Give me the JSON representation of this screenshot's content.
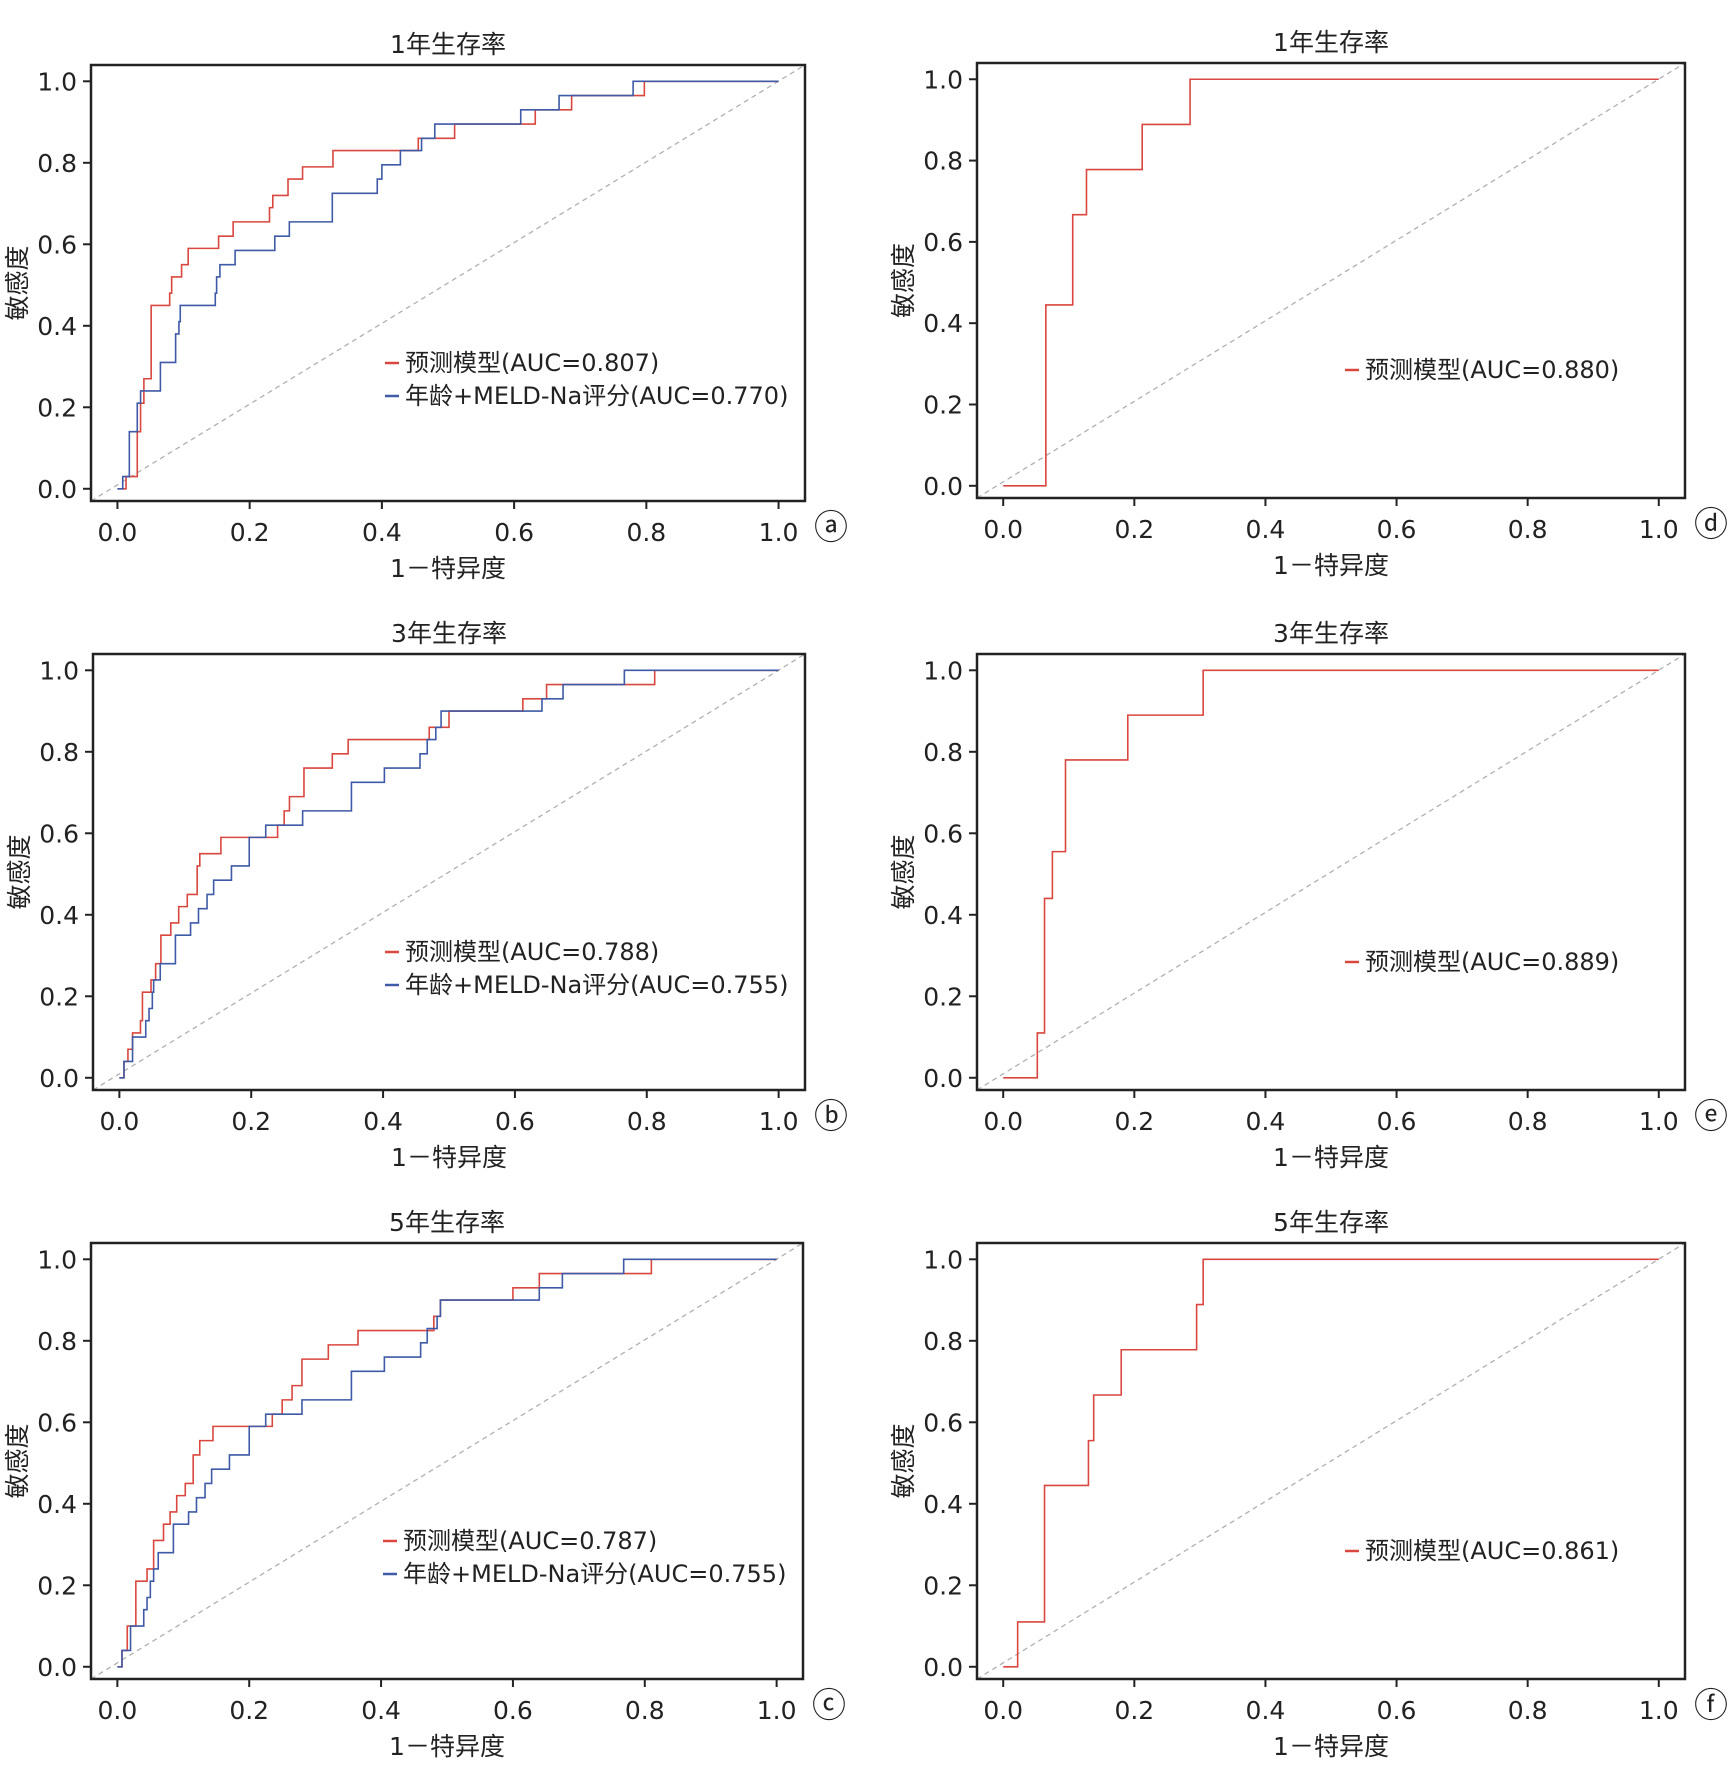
{
  "colors": {
    "model": "#d9473f",
    "meld": "#3f5aa6",
    "diagonal": "#b0b0b0",
    "axis": "#222222"
  },
  "chart_data": [
    {
      "panel": "a",
      "panel_mark": "ⓐ",
      "type": "line",
      "title": "1年生存率",
      "xlabel": "1－特异度",
      "ylabel": "敏感度",
      "xlim": [
        -0.04,
        1.04
      ],
      "ylim": [
        -0.03,
        1.04
      ],
      "xticks": [
        "0.0",
        "0.2",
        "0.4",
        "0.6",
        "0.8",
        "1.0"
      ],
      "yticks": [
        "0.0",
        "0.2",
        "0.4",
        "0.6",
        "0.8",
        "1.0"
      ],
      "grid": false,
      "legend_position": "bottom-right",
      "diagonal_reference": true,
      "series": [
        {
          "name": "预测模型(AUC=0.807)",
          "color_key": "model",
          "step_points": [
            [
              0,
              0
            ],
            [
              0.013,
              0
            ],
            [
              0.013,
              0.03
            ],
            [
              0.03,
              0.03
            ],
            [
              0.03,
              0.14
            ],
            [
              0.035,
              0.21
            ],
            [
              0.04,
              0.27
            ],
            [
              0.051,
              0.28
            ],
            [
              0.051,
              0.45
            ],
            [
              0.079,
              0.48
            ],
            [
              0.082,
              0.52
            ],
            [
              0.097,
              0.55
            ],
            [
              0.107,
              0.59
            ],
            [
              0.153,
              0.62
            ],
            [
              0.175,
              0.655
            ],
            [
              0.23,
              0.69
            ],
            [
              0.235,
              0.72
            ],
            [
              0.258,
              0.76
            ],
            [
              0.28,
              0.79
            ],
            [
              0.326,
              0.83
            ],
            [
              0.455,
              0.86
            ],
            [
              0.51,
              0.895
            ],
            [
              0.632,
              0.93
            ],
            [
              0.687,
              0.965
            ],
            [
              0.797,
              1.0
            ],
            [
              1.0,
              1.0
            ]
          ]
        },
        {
          "name": "年龄+MELD-Na评分(AUC=0.770)",
          "color_key": "meld",
          "step_points": [
            [
              0,
              0
            ],
            [
              0.008,
              0
            ],
            [
              0.008,
              0.03
            ],
            [
              0.018,
              0.14
            ],
            [
              0.03,
              0.21
            ],
            [
              0.035,
              0.24
            ],
            [
              0.065,
              0.31
            ],
            [
              0.088,
              0.38
            ],
            [
              0.093,
              0.41
            ],
            [
              0.095,
              0.45
            ],
            [
              0.148,
              0.48
            ],
            [
              0.15,
              0.52
            ],
            [
              0.155,
              0.55
            ],
            [
              0.178,
              0.585
            ],
            [
              0.238,
              0.62
            ],
            [
              0.26,
              0.655
            ],
            [
              0.325,
              0.725
            ],
            [
              0.393,
              0.76
            ],
            [
              0.4,
              0.795
            ],
            [
              0.428,
              0.83
            ],
            [
              0.46,
              0.86
            ],
            [
              0.48,
              0.895
            ],
            [
              0.61,
              0.93
            ],
            [
              0.668,
              0.965
            ],
            [
              0.78,
              1.0
            ],
            [
              1.0,
              1.0
            ]
          ]
        }
      ]
    },
    {
      "panel": "d",
      "panel_mark": "ⓓ",
      "type": "line",
      "title": "1年生存率",
      "xlabel": "1－特异度",
      "ylabel": "敏感度",
      "xlim": [
        -0.04,
        1.04
      ],
      "ylim": [
        -0.03,
        1.04
      ],
      "xticks": [
        "0.0",
        "0.2",
        "0.4",
        "0.6",
        "0.8",
        "1.0"
      ],
      "yticks": [
        "0.0",
        "0.2",
        "0.4",
        "0.6",
        "0.8",
        "1.0"
      ],
      "grid": false,
      "legend_position": "right",
      "diagonal_reference": true,
      "series": [
        {
          "name": "预测模型(AUC=0.880)",
          "color_key": "model",
          "step_points": [
            [
              0,
              0
            ],
            [
              0.065,
              0
            ],
            [
              0.065,
              0.445
            ],
            [
              0.106,
              0.667
            ],
            [
              0.127,
              0.778
            ],
            [
              0.212,
              0.889
            ],
            [
              0.285,
              1.0
            ],
            [
              1.0,
              1.0
            ]
          ]
        }
      ]
    },
    {
      "panel": "b",
      "panel_mark": "ⓑ",
      "type": "line",
      "title": "3年生存率",
      "xlabel": "1－特异度",
      "ylabel": "敏感度",
      "xlim": [
        -0.04,
        1.04
      ],
      "ylim": [
        -0.03,
        1.04
      ],
      "xticks": [
        "0.0",
        "0.2",
        "0.4",
        "0.6",
        "0.8",
        "1.0"
      ],
      "yticks": [
        "0.0",
        "0.2",
        "0.4",
        "0.6",
        "0.8",
        "1.0"
      ],
      "grid": false,
      "legend_position": "bottom-right",
      "diagonal_reference": true,
      "series": [
        {
          "name": "预测模型(AUC=0.788)",
          "color_key": "model",
          "step_points": [
            [
              0,
              0
            ],
            [
              0.007,
              0
            ],
            [
              0.007,
              0.04
            ],
            [
              0.013,
              0.07
            ],
            [
              0.02,
              0.11
            ],
            [
              0.032,
              0.14
            ],
            [
              0.035,
              0.21
            ],
            [
              0.048,
              0.24
            ],
            [
              0.055,
              0.28
            ],
            [
              0.063,
              0.35
            ],
            [
              0.078,
              0.38
            ],
            [
              0.09,
              0.42
            ],
            [
              0.103,
              0.45
            ],
            [
              0.118,
              0.52
            ],
            [
              0.122,
              0.55
            ],
            [
              0.154,
              0.59
            ],
            [
              0.24,
              0.62
            ],
            [
              0.25,
              0.655
            ],
            [
              0.258,
              0.69
            ],
            [
              0.28,
              0.76
            ],
            [
              0.323,
              0.795
            ],
            [
              0.347,
              0.83
            ],
            [
              0.47,
              0.86
            ],
            [
              0.5,
              0.9
            ],
            [
              0.612,
              0.93
            ],
            [
              0.648,
              0.965
            ],
            [
              0.812,
              1.0
            ],
            [
              1.0,
              1.0
            ]
          ]
        },
        {
          "name": "年龄+MELD-Na评分(AUC=0.755)",
          "color_key": "meld",
          "step_points": [
            [
              0,
              0
            ],
            [
              0.007,
              0
            ],
            [
              0.007,
              0.04
            ],
            [
              0.02,
              0.1
            ],
            [
              0.04,
              0.14
            ],
            [
              0.045,
              0.17
            ],
            [
              0.05,
              0.21
            ],
            [
              0.052,
              0.24
            ],
            [
              0.062,
              0.28
            ],
            [
              0.085,
              0.35
            ],
            [
              0.108,
              0.38
            ],
            [
              0.12,
              0.415
            ],
            [
              0.133,
              0.45
            ],
            [
              0.143,
              0.485
            ],
            [
              0.17,
              0.52
            ],
            [
              0.197,
              0.59
            ],
            [
              0.222,
              0.62
            ],
            [
              0.278,
              0.655
            ],
            [
              0.352,
              0.725
            ],
            [
              0.402,
              0.76
            ],
            [
              0.456,
              0.795
            ],
            [
              0.467,
              0.83
            ],
            [
              0.48,
              0.86
            ],
            [
              0.488,
              0.9
            ],
            [
              0.641,
              0.93
            ],
            [
              0.673,
              0.965
            ],
            [
              0.766,
              1.0
            ],
            [
              1.0,
              1.0
            ]
          ]
        }
      ]
    },
    {
      "panel": "e",
      "panel_mark": "ⓔ",
      "type": "line",
      "title": "3年生存率",
      "xlabel": "1－特异度",
      "ylabel": "敏感度",
      "xlim": [
        -0.04,
        1.04
      ],
      "ylim": [
        -0.03,
        1.04
      ],
      "xticks": [
        "0.0",
        "0.2",
        "0.4",
        "0.6",
        "0.8",
        "1.0"
      ],
      "yticks": [
        "0.0",
        "0.2",
        "0.4",
        "0.6",
        "0.8",
        "1.0"
      ],
      "grid": false,
      "legend_position": "bottom-right",
      "diagonal_reference": true,
      "series": [
        {
          "name": "预测模型(AUC=0.889)",
          "color_key": "model",
          "step_points": [
            [
              0,
              0
            ],
            [
              0.052,
              0
            ],
            [
              0.052,
              0.11
            ],
            [
              0.063,
              0.44
            ],
            [
              0.075,
              0.555
            ],
            [
              0.095,
              0.78
            ],
            [
              0.19,
              0.89
            ],
            [
              0.305,
              1.0
            ],
            [
              1.0,
              1.0
            ]
          ]
        }
      ]
    },
    {
      "panel": "c",
      "panel_mark": "ⓒ",
      "type": "line",
      "title": "5年生存率",
      "xlabel": "1－特异度",
      "ylabel": "敏感度",
      "xlim": [
        -0.04,
        1.04
      ],
      "ylim": [
        -0.03,
        1.04
      ],
      "xticks": [
        "0.0",
        "0.2",
        "0.4",
        "0.6",
        "0.8",
        "1.0"
      ],
      "yticks": [
        "0.0",
        "0.2",
        "0.4",
        "0.6",
        "0.8",
        "1.0"
      ],
      "grid": false,
      "legend_position": "bottom-right",
      "diagonal_reference": true,
      "series": [
        {
          "name": "预测模型(AUC=0.787)",
          "color_key": "model",
          "step_points": [
            [
              0,
              0
            ],
            [
              0.007,
              0
            ],
            [
              0.007,
              0.04
            ],
            [
              0.015,
              0.1
            ],
            [
              0.028,
              0.21
            ],
            [
              0.045,
              0.24
            ],
            [
              0.055,
              0.31
            ],
            [
              0.07,
              0.35
            ],
            [
              0.08,
              0.38
            ],
            [
              0.09,
              0.42
            ],
            [
              0.103,
              0.45
            ],
            [
              0.115,
              0.52
            ],
            [
              0.125,
              0.555
            ],
            [
              0.145,
              0.59
            ],
            [
              0.235,
              0.62
            ],
            [
              0.25,
              0.655
            ],
            [
              0.265,
              0.69
            ],
            [
              0.28,
              0.755
            ],
            [
              0.32,
              0.79
            ],
            [
              0.365,
              0.825
            ],
            [
              0.48,
              0.86
            ],
            [
              0.49,
              0.9
            ],
            [
              0.6,
              0.93
            ],
            [
              0.64,
              0.965
            ],
            [
              0.81,
              1.0
            ],
            [
              1.0,
              1.0
            ]
          ]
        },
        {
          "name": "年龄+MELD-Na评分(AUC=0.755)",
          "color_key": "meld",
          "step_points": [
            [
              0,
              0
            ],
            [
              0.007,
              0
            ],
            [
              0.007,
              0.04
            ],
            [
              0.02,
              0.1
            ],
            [
              0.04,
              0.14
            ],
            [
              0.045,
              0.17
            ],
            [
              0.05,
              0.21
            ],
            [
              0.055,
              0.24
            ],
            [
              0.062,
              0.28
            ],
            [
              0.085,
              0.35
            ],
            [
              0.108,
              0.38
            ],
            [
              0.12,
              0.415
            ],
            [
              0.133,
              0.45
            ],
            [
              0.143,
              0.485
            ],
            [
              0.17,
              0.52
            ],
            [
              0.2,
              0.59
            ],
            [
              0.225,
              0.62
            ],
            [
              0.28,
              0.655
            ],
            [
              0.355,
              0.725
            ],
            [
              0.405,
              0.76
            ],
            [
              0.46,
              0.795
            ],
            [
              0.47,
              0.83
            ],
            [
              0.485,
              0.86
            ],
            [
              0.49,
              0.9
            ],
            [
              0.64,
              0.93
            ],
            [
              0.675,
              0.965
            ],
            [
              0.768,
              1.0
            ],
            [
              1.0,
              1.0
            ]
          ]
        }
      ]
    },
    {
      "panel": "f",
      "panel_mark": "ⓕ",
      "type": "line",
      "title": "5年生存率",
      "xlabel": "1－特异度",
      "ylabel": "敏感度",
      "xlim": [
        -0.04,
        1.04
      ],
      "ylim": [
        -0.03,
        1.04
      ],
      "xticks": [
        "0.0",
        "0.2",
        "0.4",
        "0.6",
        "0.8",
        "1.0"
      ],
      "yticks": [
        "0.0",
        "0.2",
        "0.4",
        "0.6",
        "0.8",
        "1.0"
      ],
      "grid": false,
      "legend_position": "bottom-right",
      "diagonal_reference": true,
      "series": [
        {
          "name": "预测模型(AUC=0.861)",
          "color_key": "model",
          "step_points": [
            [
              0,
              0
            ],
            [
              0.022,
              0
            ],
            [
              0.022,
              0.11
            ],
            [
              0.063,
              0.445
            ],
            [
              0.13,
              0.555
            ],
            [
              0.138,
              0.667
            ],
            [
              0.18,
              0.778
            ],
            [
              0.295,
              0.889
            ],
            [
              0.305,
              1.0
            ],
            [
              1.0,
              1.0
            ]
          ]
        }
      ]
    }
  ]
}
